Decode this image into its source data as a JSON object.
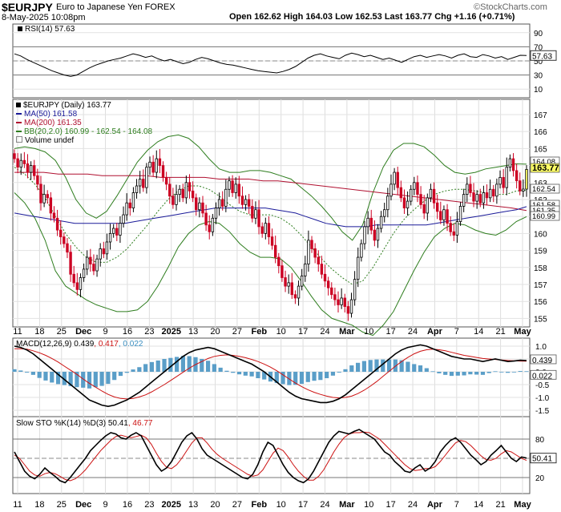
{
  "header": {
    "symbol": "$EURJPY",
    "name": "Euro to Japanese Yen FOREX",
    "source": "©StockCharts.com",
    "datetime": "8-May-2025 10:08pm",
    "quote": "Open 162.62  High 164.03  Low 162.53  Last 163.77  Chg +1.16 (+0.71%)"
  },
  "legends": {
    "rsi": "RSI(14) 57.63",
    "price_title": "$EURJPY (Daily) 163.77",
    "ma50": "MA(50) 161.58",
    "ma200": "MA(200) 161.35",
    "bb": "BB(20,2.0) 160.99 - 162.54 - 164.08",
    "volume": "Volume undef",
    "macd": "MACD(12,26,9) ",
    "macd_v1": "0.439",
    "macd_v2": ", 0.417",
    "macd_v3": ", 0.022",
    "sto": "Slow STO %K(14) %D(3) ",
    "sto_v1": "50.41",
    "sto_v2": ", 46.77"
  },
  "colors": {
    "up": "#ffffff",
    "down": "#cc0022",
    "ma50": "#1a1a99",
    "ma200": "#b01030",
    "bb": "#2e7d1e",
    "bbmid": "#2e7d1e",
    "macd": "#000000",
    "signal": "#cc1111",
    "hist": "#5a9ec8",
    "last_tag": "#ffff66"
  },
  "chart_data": {
    "type": "candlestick",
    "x_ticks": [
      "11",
      "18",
      "25",
      "Dec",
      "9",
      "16",
      "23",
      "2025",
      "13",
      "20",
      "27",
      "Feb",
      "10",
      "17",
      "24",
      "Mar",
      "10",
      "17",
      "24",
      "Apr",
      "7",
      "14",
      "21",
      "May"
    ],
    "price_axis": {
      "ticks": [
        "167",
        "166",
        "165",
        "164",
        "163",
        "162",
        "161",
        "160",
        "159",
        "158",
        "157",
        "156",
        "155"
      ],
      "tags": [
        "164.08",
        "163.77",
        "162.54",
        "161.58",
        "161.35",
        "160.99"
      ],
      "ylim": [
        154.5,
        167.8
      ]
    },
    "rsi_axis": {
      "ticks": [
        "90",
        "70",
        "50",
        "30",
        "10"
      ],
      "tag": "57.63",
      "ylim": [
        0,
        100
      ],
      "levels": [
        70,
        30
      ]
    },
    "macd_axis": {
      "ticks": [
        "1.0",
        "0.5",
        "0.0",
        "-0.5",
        "-1.0",
        "-1.5"
      ],
      "tags": [
        "0.439",
        "0.022"
      ],
      "ylim": [
        -1.75,
        1.25
      ]
    },
    "sto_axis": {
      "ticks": [
        "80",
        "50",
        "20"
      ],
      "tag": "50.41",
      "ylim": [
        0,
        100
      ],
      "levels": [
        80,
        20
      ]
    },
    "closes": [
      164.4,
      163.9,
      164.3,
      164.1,
      163.6,
      164.0,
      163.4,
      162.9,
      161.8,
      162.3,
      162.1,
      161.2,
      160.9,
      160.2,
      159.8,
      159.4,
      158.9,
      157.6,
      157.1,
      156.7,
      157.4,
      157.9,
      158.6,
      158.2,
      157.8,
      158.5,
      159.1,
      158.8,
      159.5,
      160.0,
      160.3,
      159.9,
      160.6,
      161.1,
      161.8,
      161.5,
      162.4,
      162.8,
      163.2,
      162.7,
      163.9,
      164.2,
      163.6,
      164.4,
      164.0,
      163.3,
      162.9,
      162.2,
      161.7,
      162.3,
      162.6,
      162.1,
      163.0,
      162.5,
      162.1,
      161.4,
      161.8,
      161.2,
      160.5,
      160.1,
      160.9,
      161.5,
      162.0,
      161.6,
      162.6,
      163.1,
      162.4,
      162.9,
      162.2,
      161.7,
      162.0,
      161.6,
      160.9,
      161.4,
      160.4,
      160.0,
      160.6,
      159.8,
      159.3,
      158.6,
      158.1,
      157.4,
      156.9,
      157.1,
      156.4,
      156.2,
      156.9,
      157.5,
      158.2,
      159.6,
      159.1,
      158.6,
      158.2,
      157.6,
      157.2,
      156.8,
      156.4,
      156.1,
      155.8,
      156.2,
      155.7,
      155.3,
      156.1,
      157.3,
      158.6,
      159.4,
      160.4,
      160.9,
      160.2,
      159.6,
      160.3,
      161.0,
      161.4,
      162.2,
      162.9,
      163.6,
      162.7,
      162.1,
      161.5,
      161.9,
      162.6,
      163.0,
      162.3,
      161.7,
      161.2,
      162.1,
      162.6,
      161.8,
      161.3,
      160.8,
      161.4,
      160.6,
      160.1,
      159.9,
      160.7,
      161.6,
      162.3,
      162.9,
      162.4,
      161.9,
      162.3,
      161.8,
      162.4,
      162.1,
      162.6,
      162.2,
      162.9,
      163.3,
      162.7,
      163.9,
      164.4,
      163.7,
      163.1,
      162.5,
      162.61,
      163.77
    ],
    "ma50": [
      161.2,
      161.1,
      161.0,
      160.9,
      160.8,
      160.7,
      160.6,
      160.6,
      160.6,
      160.6,
      160.6,
      160.6,
      160.7,
      160.8,
      160.9,
      161.0,
      161.1,
      161.2,
      161.3,
      161.4,
      161.5,
      161.5,
      161.5,
      161.5,
      161.5,
      161.5,
      161.4,
      161.3,
      161.2,
      161.0,
      160.8,
      160.6,
      160.5,
      160.4,
      160.4,
      160.4,
      160.5,
      160.5,
      160.5,
      160.5,
      160.5,
      160.5,
      160.6,
      160.7,
      160.8,
      160.9,
      161.0,
      161.1,
      161.2,
      161.3,
      161.4,
      161.58
    ],
    "ma200": [
      163.6,
      163.6,
      163.6,
      163.5,
      163.5,
      163.5,
      163.4,
      163.4,
      163.4,
      163.4,
      163.3,
      163.3,
      163.3,
      163.3,
      163.2,
      163.2,
      163.2,
      163.1,
      163.1,
      163.0,
      162.9,
      162.8,
      162.7,
      162.6,
      162.5,
      162.4,
      162.3,
      162.2,
      162.1,
      162.0,
      161.9,
      161.8,
      161.7,
      161.6,
      161.5,
      161.35
    ],
    "bb_mid": [
      163.9,
      163.5,
      162.9,
      162.1,
      161.0,
      160.0,
      159.2,
      158.6,
      158.3,
      158.3,
      158.6,
      159.1,
      159.8,
      160.5,
      161.3,
      162.0,
      162.5,
      162.8,
      162.8,
      162.6,
      162.2,
      161.7,
      161.3,
      161.1,
      161.1,
      161.1,
      160.9,
      160.5,
      159.9,
      159.2,
      158.5,
      157.9,
      157.4,
      157.0,
      157.2,
      158.0,
      159.0,
      160.0,
      160.8,
      161.4,
      161.9,
      162.3,
      162.5,
      162.6,
      162.6,
      162.5,
      162.4,
      162.3,
      162.3,
      162.5,
      162.54
    ],
    "bb_upper": [
      165.0,
      165.1,
      165.0,
      164.8,
      164.3,
      163.3,
      162.0,
      161.2,
      160.9,
      161.3,
      162.2,
      163.2,
      164.2,
      164.9,
      165.4,
      165.7,
      165.8,
      165.6,
      165.1,
      164.4,
      163.8,
      163.6,
      163.6,
      163.7,
      163.7,
      163.6,
      163.4,
      163.2,
      162.7,
      162.2,
      161.6,
      160.9,
      160.1,
      159.6,
      160.5,
      162.4,
      163.9,
      164.9,
      165.3,
      165.3,
      165.1,
      164.6,
      164.0,
      163.6,
      163.5,
      163.6,
      163.8,
      163.9,
      164.0,
      164.1,
      164.08
    ],
    "bb_lower": [
      162.4,
      161.8,
      160.9,
      159.6,
      157.8,
      156.9,
      156.5,
      156.1,
      155.8,
      155.6,
      155.4,
      155.4,
      155.5,
      156.0,
      156.9,
      158.0,
      159.2,
      160.0,
      160.5,
      160.7,
      160.6,
      160.1,
      159.4,
      158.9,
      158.6,
      158.6,
      158.5,
      158.0,
      157.2,
      156.3,
      155.5,
      155.0,
      154.8,
      154.6,
      154.2,
      154.0,
      154.6,
      155.4,
      156.6,
      157.8,
      158.9,
      159.8,
      160.3,
      160.6,
      160.5,
      160.2,
      160.0,
      159.9,
      160.2,
      160.7,
      160.99
    ],
    "rsi": [
      60,
      57,
      52,
      48,
      44,
      40,
      36,
      33,
      30,
      28,
      30,
      35,
      40,
      44,
      47,
      50,
      52,
      54,
      57,
      60,
      58,
      55,
      57,
      53,
      50,
      52,
      49,
      46,
      48,
      52,
      55,
      53,
      50,
      47,
      45,
      44,
      42,
      40,
      38,
      36,
      35,
      34,
      33,
      35,
      38,
      42,
      48,
      54,
      58,
      60,
      57,
      55,
      53,
      58,
      61,
      59,
      56,
      58,
      55,
      52,
      54,
      51,
      48,
      52,
      56,
      58,
      55,
      57,
      59,
      57,
      54,
      58,
      60,
      56,
      55,
      59,
      57,
      54,
      56,
      52,
      55,
      58,
      57.63
    ],
    "macd": [
      1.0,
      0.95,
      0.85,
      0.7,
      0.5,
      0.3,
      0.1,
      -0.1,
      -0.3,
      -0.5,
      -0.7,
      -0.9,
      -1.1,
      -1.2,
      -1.3,
      -1.35,
      -1.3,
      -1.2,
      -1.1,
      -0.95,
      -0.8,
      -0.6,
      -0.4,
      -0.2,
      0.0,
      0.2,
      0.4,
      0.6,
      0.75,
      0.85,
      0.9,
      0.95,
      0.9,
      0.8,
      0.7,
      0.6,
      0.5,
      0.4,
      0.3,
      0.15,
      0.0,
      -0.2,
      -0.4,
      -0.6,
      -0.8,
      -0.95,
      -1.05,
      -1.1,
      -1.15,
      -1.2,
      -1.2,
      -1.15,
      -1.05,
      -0.9,
      -0.7,
      -0.5,
      -0.3,
      -0.1,
      0.1,
      0.3,
      0.5,
      0.7,
      0.85,
      0.95,
      1.0,
      1.05,
      1.0,
      0.9,
      0.8,
      0.7,
      0.6,
      0.55,
      0.5,
      0.5,
      0.45,
      0.4,
      0.45,
      0.5,
      0.45,
      0.4,
      0.42,
      0.45,
      0.439
    ],
    "macd_signal": [
      0.9,
      0.9,
      0.88,
      0.82,
      0.74,
      0.64,
      0.52,
      0.38,
      0.22,
      0.06,
      -0.1,
      -0.28,
      -0.45,
      -0.6,
      -0.75,
      -0.88,
      -0.98,
      -1.04,
      -1.06,
      -1.04,
      -0.98,
      -0.9,
      -0.78,
      -0.64,
      -0.5,
      -0.34,
      -0.18,
      -0.02,
      0.14,
      0.28,
      0.4,
      0.52,
      0.6,
      0.64,
      0.66,
      0.64,
      0.6,
      0.55,
      0.48,
      0.4,
      0.3,
      0.18,
      0.04,
      -0.12,
      -0.28,
      -0.44,
      -0.58,
      -0.7,
      -0.8,
      -0.88,
      -0.95,
      -1.0,
      -1.02,
      -1.0,
      -0.95,
      -0.85,
      -0.72,
      -0.56,
      -0.38,
      -0.18,
      0.02,
      0.22,
      0.4,
      0.56,
      0.7,
      0.8,
      0.86,
      0.88,
      0.86,
      0.82,
      0.76,
      0.7,
      0.64,
      0.6,
      0.56,
      0.52,
      0.5,
      0.48,
      0.46,
      0.44,
      0.43,
      0.42,
      0.417
    ],
    "sto_k": [
      60,
      45,
      30,
      22,
      18,
      25,
      35,
      28,
      22,
      15,
      12,
      20,
      30,
      40,
      50,
      62,
      70,
      78,
      85,
      90,
      88,
      82,
      80,
      86,
      90,
      85,
      70,
      55,
      40,
      30,
      35,
      45,
      60,
      75,
      85,
      90,
      80,
      65,
      55,
      50,
      45,
      40,
      35,
      30,
      25,
      20,
      18,
      25,
      40,
      60,
      75,
      70,
      55,
      40,
      28,
      20,
      15,
      12,
      18,
      30,
      45,
      60,
      75,
      85,
      92,
      90,
      88,
      92,
      95,
      90,
      85,
      80,
      70,
      60,
      55,
      45,
      38,
      30,
      28,
      35,
      40,
      30,
      35,
      45,
      60,
      70,
      78,
      82,
      75,
      65,
      55,
      48,
      40,
      45,
      55,
      62,
      70,
      60,
      50,
      45,
      52,
      50.41
    ],
    "sto_d": [
      55,
      50,
      40,
      30,
      24,
      22,
      26,
      28,
      26,
      22,
      17,
      15,
      18,
      24,
      32,
      42,
      52,
      62,
      70,
      78,
      84,
      86,
      84,
      82,
      84,
      86,
      82,
      72,
      58,
      45,
      36,
      34,
      40,
      50,
      62,
      74,
      82,
      82,
      74,
      64,
      56,
      50,
      45,
      40,
      35,
      30,
      25,
      22,
      24,
      32,
      45,
      58,
      66,
      62,
      52,
      40,
      30,
      22,
      16,
      16,
      22,
      32,
      46,
      60,
      72,
      82,
      88,
      90,
      90,
      91,
      90,
      85,
      80,
      72,
      64,
      56,
      48,
      40,
      34,
      31,
      32,
      34,
      34,
      37,
      45,
      55,
      65,
      74,
      78,
      76,
      70,
      62,
      54,
      48,
      47,
      50,
      57,
      62,
      60,
      55,
      50,
      46.77
    ]
  }
}
